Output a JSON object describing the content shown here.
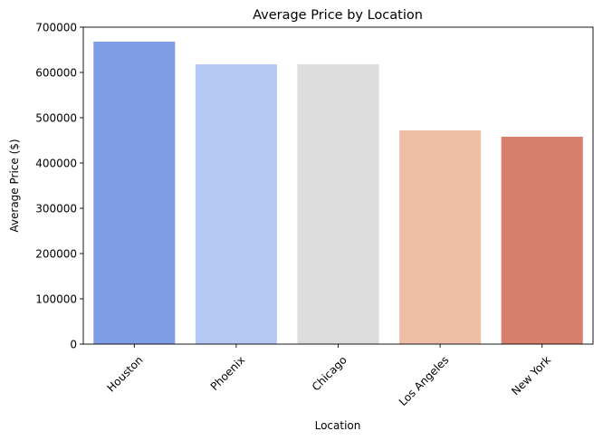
{
  "chart_data": {
    "type": "bar",
    "title": "Average Price by Location",
    "xlabel": "Location",
    "ylabel": "Average Price ($)",
    "categories": [
      "Houston",
      "Phoenix",
      "Chicago",
      "Los Angeles",
      "New York"
    ],
    "values": [
      668000,
      618000,
      618000,
      472000,
      458000
    ],
    "colors": [
      "#7f9ce7",
      "#b4c9f4",
      "#dcdcdc",
      "#eebda6",
      "#d67f6c"
    ],
    "ylim": [
      0,
      700000
    ],
    "yticks": [
      0,
      100000,
      200000,
      300000,
      400000,
      500000,
      600000,
      700000
    ],
    "ytick_labels": [
      "0",
      "100000",
      "200000",
      "300000",
      "400000",
      "500000",
      "600000",
      "700000"
    ],
    "grid": false,
    "legend": "none"
  }
}
